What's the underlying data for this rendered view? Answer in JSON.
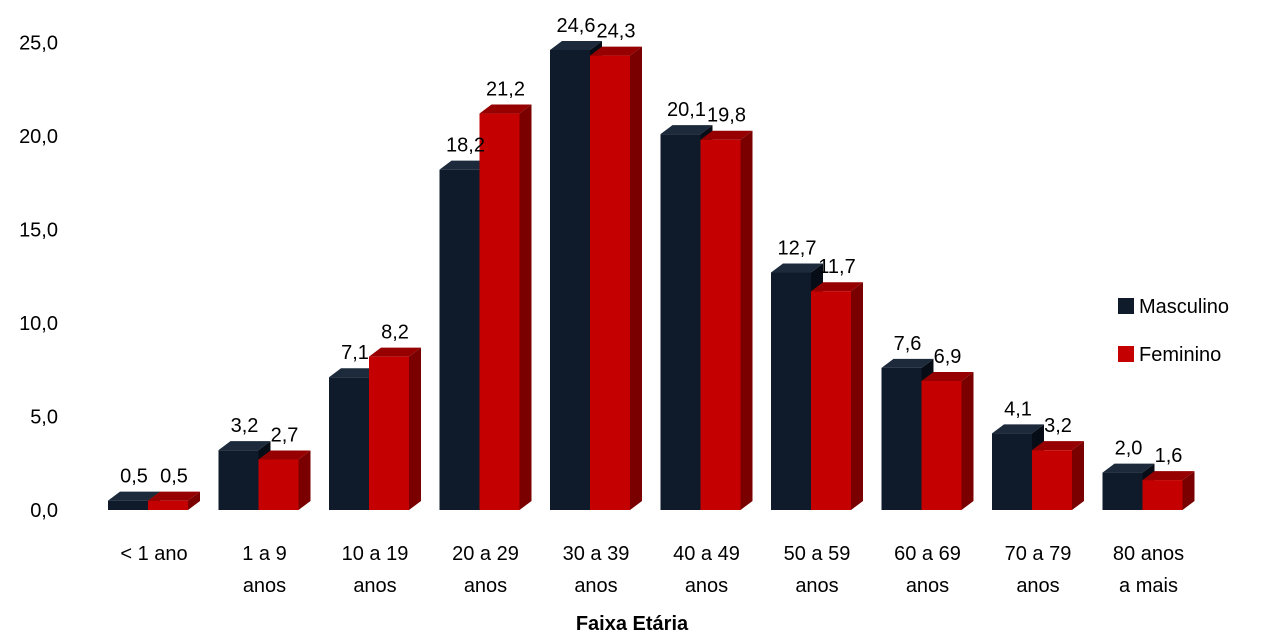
{
  "chart_data": {
    "type": "bar",
    "xlabel": "Faixa Etária",
    "ylabel": "",
    "ylim": [
      0,
      25
    ],
    "yticks": [
      "0,0",
      "5,0",
      "10,0",
      "15,0",
      "20,0",
      "25,0"
    ],
    "ytick_values": [
      0,
      5,
      10,
      15,
      20,
      25
    ],
    "categories": [
      [
        "< 1 ano"
      ],
      [
        "1 a 9",
        "anos"
      ],
      [
        "10 a 19",
        "anos"
      ],
      [
        "20 a 29",
        "anos"
      ],
      [
        "30 a 39",
        "anos"
      ],
      [
        "40 a 49",
        "anos"
      ],
      [
        "50 a 59",
        "anos"
      ],
      [
        "60 a 69",
        "anos"
      ],
      [
        "70 a 79",
        "anos"
      ],
      [
        "80 anos",
        "a mais"
      ]
    ],
    "series": [
      {
        "name": "Masculino",
        "color": "#0f1b2a",
        "side_color": "#070d16",
        "top_color": "#1c2a3b",
        "values": [
          0.5,
          3.2,
          7.1,
          18.2,
          24.6,
          20.1,
          12.7,
          7.6,
          4.1,
          2.0
        ],
        "labels": [
          "0,5",
          "3,2",
          "7,1",
          "18,2",
          "24,6",
          "20,1",
          "12,7",
          "7,6",
          "4,1",
          "2,0"
        ]
      },
      {
        "name": "Feminino",
        "color": "#c40000",
        "side_color": "#7a0000",
        "top_color": "#960000",
        "values": [
          0.5,
          2.7,
          8.2,
          21.2,
          24.3,
          19.8,
          11.7,
          6.9,
          3.2,
          1.6
        ],
        "labels": [
          "0,5",
          "2,7",
          "8,2",
          "21,2",
          "24,3",
          "19,8",
          "11,7",
          "6,9",
          "3,2",
          "1,6"
        ]
      }
    ],
    "legend_position": "right",
    "grid": false
  }
}
